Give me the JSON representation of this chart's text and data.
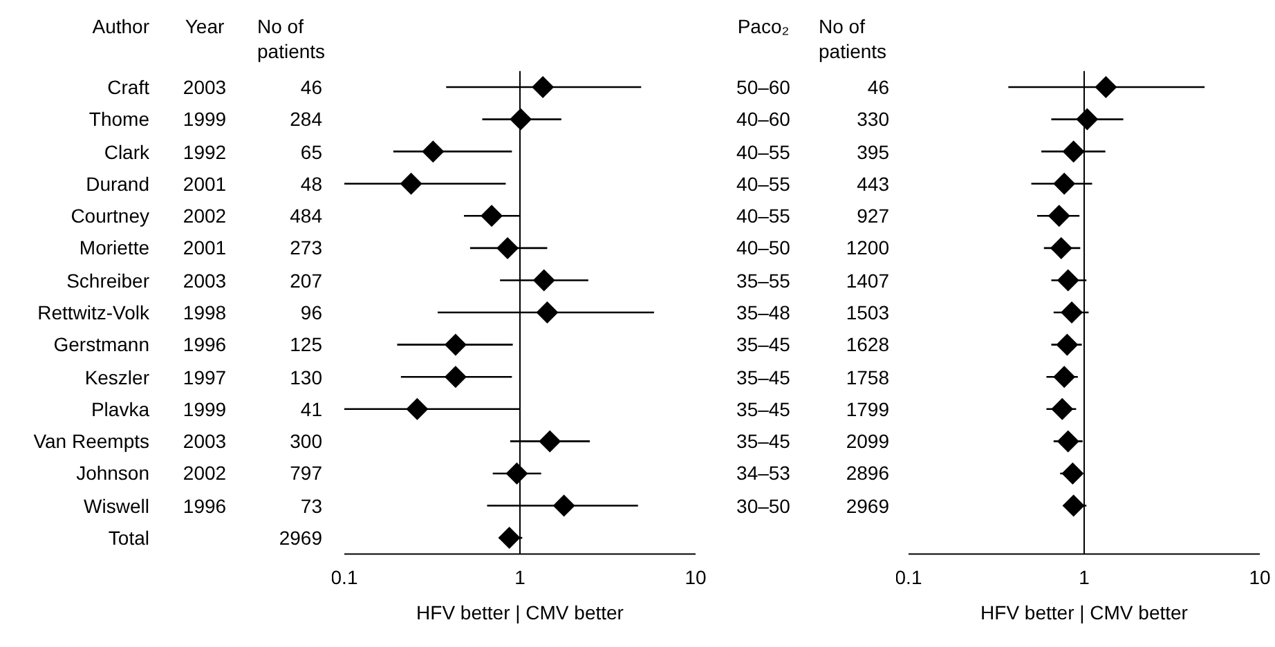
{
  "chart_data": [
    {
      "type": "other",
      "data_labels": true,
      "ylabel": "Author",
      "categories": [
        "Craft",
        "Thome",
        "Clark",
        "Durand",
        "Courtney",
        "Moriette",
        "Schreiber",
        "Rettwitz-Volk",
        "Gerstmann",
        "Keszler",
        "Plavka",
        "Van Reempts",
        "Johnson",
        "Wiswell",
        "Total"
      ],
      "series": [
        {
          "name": "Year",
          "values": [
            2003,
            1999,
            1992,
            2001,
            2002,
            2001,
            2003,
            1998,
            1996,
            1997,
            1999,
            2003,
            2002,
            1996,
            null
          ]
        },
        {
          "name": "No of patients",
          "values": [
            46,
            284,
            65,
            48,
            484,
            273,
            207,
            96,
            125,
            130,
            41,
            300,
            797,
            73,
            2969
          ]
        }
      ]
    },
    {
      "type": "scatter",
      "orientation": "horizontal",
      "categories": [
        null,
        null,
        null,
        null,
        null,
        null,
        null,
        null,
        null,
        null,
        null,
        null,
        null,
        null,
        null
      ],
      "values": [
        1.35,
        1.01,
        0.32,
        0.24,
        0.69,
        0.85,
        1.37,
        1.43,
        0.43,
        0.43,
        0.26,
        1.48,
        0.96,
        1.78,
        0.87
      ],
      "errors": [
        [
          0.38,
          4.9
        ],
        [
          0.61,
          1.72
        ],
        [
          0.19,
          0.9
        ],
        [
          0.1,
          0.83
        ],
        [
          0.48,
          1.0
        ],
        [
          0.52,
          1.43
        ],
        [
          0.77,
          2.45
        ],
        [
          0.34,
          5.8
        ],
        [
          0.2,
          0.91
        ],
        [
          0.21,
          0.9
        ],
        [
          0.1,
          1.0
        ],
        [
          0.88,
          2.5
        ],
        [
          0.7,
          1.32
        ],
        [
          0.65,
          4.7
        ],
        [
          0.76,
          1.03
        ]
      ],
      "color": "#000000",
      "marker": "diamond",
      "log": "x",
      "xlim": [
        0.1,
        10
      ],
      "xticks": [
        0.1,
        1,
        10
      ],
      "xlabel": "HFV better | CMV better",
      "ref_lines": [
        {
          "axis": "x",
          "value": 1,
          "color": "#000000"
        }
      ]
    },
    {
      "type": "other",
      "data_labels": true,
      "ylabel": "Paco₂",
      "categories": [
        "50–60",
        "40–60",
        "40–55",
        "40–55",
        "40–55",
        "40–50",
        "35–55",
        "35–48",
        "35–45",
        "35–45",
        "35–45",
        "35–45",
        "34–53",
        "30–50",
        null
      ],
      "series": [
        {
          "name": "No of patients",
          "values": [
            46,
            330,
            395,
            443,
            927,
            1200,
            1407,
            1503,
            1628,
            1758,
            1799,
            2099,
            2896,
            2969,
            null
          ]
        }
      ]
    },
    {
      "type": "scatter",
      "orientation": "horizontal",
      "categories": [
        null,
        null,
        null,
        null,
        null,
        null,
        null,
        null,
        null,
        null,
        null,
        null,
        null,
        null,
        null
      ],
      "values": [
        1.33,
        1.04,
        0.87,
        0.77,
        0.72,
        0.74,
        0.81,
        0.85,
        0.8,
        0.77,
        0.75,
        0.81,
        0.86,
        0.87,
        null
      ],
      "errors": [
        [
          0.37,
          4.85
        ],
        [
          0.65,
          1.67
        ],
        [
          0.57,
          1.32
        ],
        [
          0.5,
          1.11
        ],
        [
          0.54,
          0.94
        ],
        [
          0.59,
          0.95
        ],
        [
          0.65,
          1.03
        ],
        [
          0.67,
          1.06
        ],
        [
          0.65,
          0.97
        ],
        [
          0.61,
          0.92
        ],
        [
          0.61,
          0.9
        ],
        [
          0.67,
          0.98
        ],
        [
          0.73,
          0.98
        ],
        [
          0.76,
          1.03
        ],
        null
      ],
      "color": "#000000",
      "marker": "diamond",
      "log": "x",
      "xlim": [
        0.1,
        10
      ],
      "xticks": [
        0.1,
        1,
        10
      ],
      "xlabel": "HFV better | CMV better",
      "ref_lines": [
        {
          "axis": "x",
          "value": 1,
          "color": "#000000"
        }
      ]
    }
  ]
}
